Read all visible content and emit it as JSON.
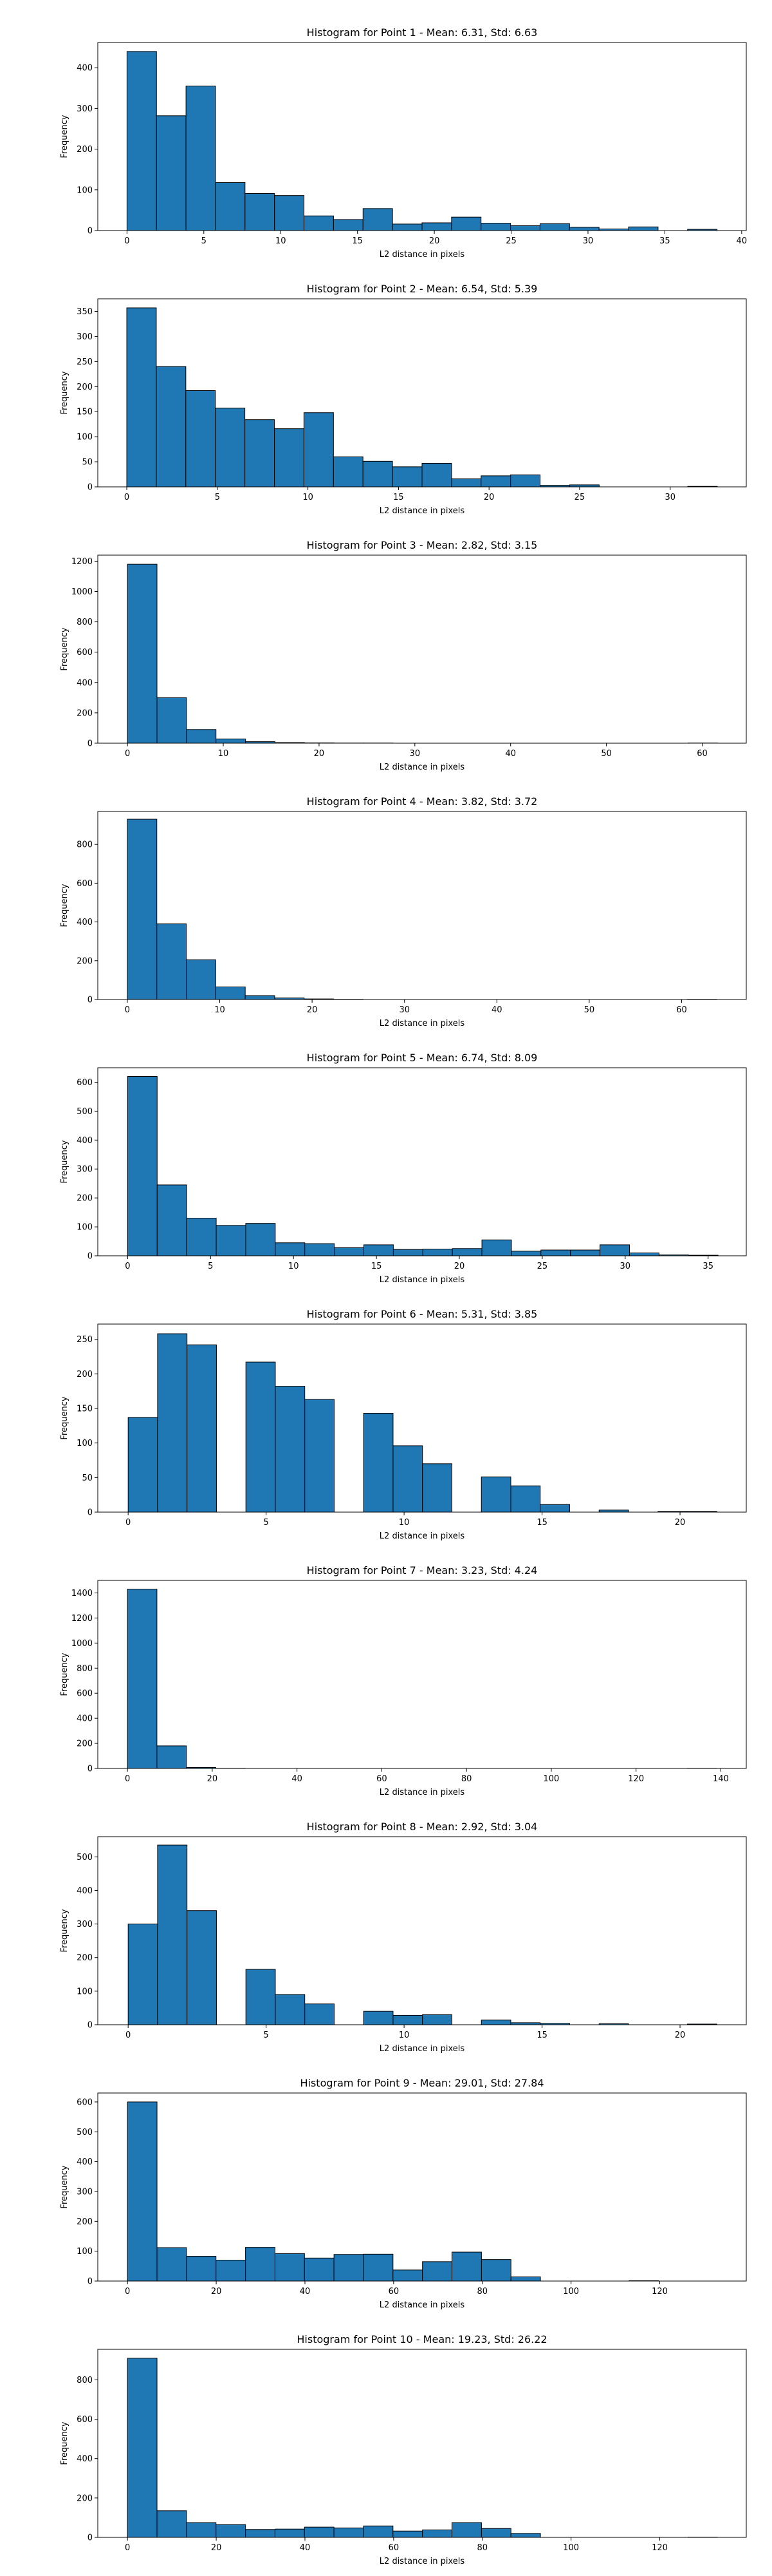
{
  "chart_data": [
    {
      "type": "bar",
      "title": "Histogram for Point 1 - Mean: 6.31, Std: 6.63",
      "xlabel": "L2 distance in pixels",
      "ylabel": "Frequency",
      "xlim": [
        -1.9,
        40.3
      ],
      "ylim": [
        0,
        462
      ],
      "xticks": [
        0,
        5,
        10,
        15,
        20,
        25,
        30,
        35,
        40
      ],
      "yticks": [
        0,
        100,
        200,
        300,
        400
      ],
      "bin_edges": [
        0,
        1.92,
        3.84,
        5.76,
        7.68,
        9.6,
        11.52,
        13.44,
        15.36,
        17.28,
        19.2,
        21.12,
        23.04,
        24.96,
        26.88,
        28.8,
        30.72,
        32.64,
        34.56,
        36.48,
        38.4
      ],
      "values": [
        440,
        282,
        355,
        118,
        91,
        86,
        36,
        27,
        54,
        16,
        19,
        33,
        18,
        12,
        17,
        8,
        4,
        9,
        0,
        3
      ],
      "grid": false,
      "color": "#1f77b4"
    },
    {
      "type": "bar",
      "title": "Histogram for Point 2 - Mean: 6.54, Std: 5.39",
      "xlabel": "L2 distance in pixels",
      "ylabel": "Frequency",
      "xlim": [
        -1.6,
        34.2
      ],
      "ylim": [
        0,
        375
      ],
      "xticks": [
        0,
        5,
        10,
        15,
        20,
        25,
        30
      ],
      "yticks": [
        0,
        50,
        100,
        150,
        200,
        250,
        300,
        350
      ],
      "bin_edges": [
        0,
        1.63,
        3.26,
        4.89,
        6.52,
        8.15,
        9.78,
        11.41,
        13.04,
        14.67,
        16.3,
        17.93,
        19.56,
        21.19,
        22.82,
        24.45,
        26.08,
        27.71,
        29.34,
        30.97,
        32.6
      ],
      "values": [
        357,
        240,
        192,
        157,
        134,
        116,
        148,
        60,
        51,
        40,
        47,
        16,
        22,
        24,
        3,
        4,
        0,
        0,
        0,
        1
      ],
      "grid": false,
      "color": "#1f77b4"
    },
    {
      "type": "bar",
      "title": "Histogram for Point 3 - Mean: 2.82, Std: 3.15",
      "xlabel": "L2 distance in pixels",
      "ylabel": "Frequency",
      "xlim": [
        -3.1,
        64.6
      ],
      "ylim": [
        0,
        1240
      ],
      "xticks": [
        0,
        10,
        20,
        30,
        40,
        50,
        60
      ],
      "yticks": [
        0,
        200,
        400,
        600,
        800,
        1000,
        1200
      ],
      "bin_edges": [
        0,
        3.08,
        6.16,
        9.24,
        12.32,
        15.4,
        18.48,
        21.56,
        24.64,
        27.72,
        30.8,
        33.88,
        36.96,
        40.04,
        43.12,
        46.2,
        49.28,
        52.36,
        55.44,
        58.52,
        61.6
      ],
      "values": [
        1180,
        300,
        90,
        28,
        10,
        4,
        2,
        1,
        1,
        0,
        0,
        0,
        0,
        0,
        0,
        0,
        0,
        0,
        0,
        1
      ],
      "grid": false,
      "color": "#1f77b4"
    },
    {
      "type": "bar",
      "title": "Histogram for Point 4 - Mean: 3.82, Std: 3.72",
      "xlabel": "L2 distance in pixels",
      "ylabel": "Frequency",
      "xlim": [
        -3.2,
        67.0
      ],
      "ylim": [
        0,
        970
      ],
      "xticks": [
        0,
        10,
        20,
        30,
        40,
        50,
        60
      ],
      "yticks": [
        0,
        200,
        400,
        600,
        800
      ],
      "bin_edges": [
        0,
        3.19,
        6.38,
        9.57,
        12.76,
        15.95,
        19.14,
        22.33,
        25.52,
        28.71,
        31.9,
        35.09,
        38.28,
        41.47,
        44.66,
        47.85,
        51.04,
        54.23,
        57.42,
        60.61,
        63.8
      ],
      "values": [
        930,
        390,
        205,
        65,
        20,
        8,
        3,
        1,
        0,
        0,
        0,
        0,
        0,
        0,
        0,
        0,
        0,
        0,
        0,
        1
      ],
      "grid": false,
      "color": "#1f77b4"
    },
    {
      "type": "bar",
      "title": "Histogram for Point 5 - Mean: 6.74, Std: 8.09",
      "xlabel": "L2 distance in pixels",
      "ylabel": "Frequency",
      "xlim": [
        -1.8,
        37.3
      ],
      "ylim": [
        0,
        650
      ],
      "xticks": [
        0,
        5,
        10,
        15,
        20,
        25,
        30,
        35
      ],
      "yticks": [
        0,
        100,
        200,
        300,
        400,
        500,
        600
      ],
      "bin_edges": [
        0,
        1.78,
        3.56,
        5.34,
        7.12,
        8.9,
        10.68,
        12.46,
        14.24,
        16.02,
        17.8,
        19.58,
        21.36,
        23.14,
        24.92,
        26.7,
        28.48,
        30.26,
        32.04,
        33.82,
        35.6
      ],
      "values": [
        620,
        245,
        130,
        105,
        112,
        45,
        42,
        28,
        38,
        22,
        23,
        25,
        55,
        16,
        20,
        20,
        38,
        10,
        3,
        2
      ],
      "grid": false,
      "color": "#1f77b4"
    },
    {
      "type": "bar",
      "title": "Histogram for Point 6 - Mean: 5.31, Std: 3.85",
      "xlabel": "L2 distance in pixels",
      "ylabel": "Frequency",
      "xlim": [
        -1.1,
        22.4
      ],
      "ylim": [
        0,
        272
      ],
      "xticks": [
        0,
        5,
        10,
        15,
        20
      ],
      "yticks": [
        0,
        50,
        100,
        150,
        200,
        250
      ],
      "bin_edges": [
        0,
        1.0666,
        2.1333,
        3.2,
        4.2666,
        5.3333,
        6.4,
        7.4666,
        8.5333,
        9.6,
        10.6666,
        11.7333,
        12.8,
        13.8666,
        14.9333,
        16.0,
        17.0666,
        18.1333,
        19.2,
        20.2666,
        21.3333
      ],
      "values": [
        137,
        258,
        242,
        0,
        217,
        182,
        163,
        0,
        143,
        96,
        70,
        0,
        51,
        38,
        11,
        0,
        3,
        0,
        1,
        1
      ],
      "grid": false,
      "color": "#1f77b4"
    },
    {
      "type": "bar",
      "title": "Histogram for Point 7 - Mean: 3.23, Std: 4.24",
      "xlabel": "L2 distance in pixels",
      "ylabel": "Frequency",
      "xlim": [
        -7.0,
        146.0
      ],
      "ylim": [
        0,
        1500
      ],
      "xticks": [
        0,
        20,
        40,
        60,
        80,
        100,
        120,
        140
      ],
      "yticks": [
        0,
        200,
        400,
        600,
        800,
        1000,
        1200,
        1400
      ],
      "bin_edges": [
        0,
        6.95,
        13.9,
        20.85,
        27.8,
        34.75,
        41.7,
        48.65,
        55.6,
        62.55,
        69.5,
        76.45,
        83.4,
        90.35,
        97.3,
        104.25,
        111.2,
        118.15,
        125.1,
        132.05,
        139.0
      ],
      "values": [
        1430,
        180,
        8,
        1,
        0,
        0,
        0,
        0,
        0,
        0,
        0,
        0,
        0,
        0,
        0,
        0,
        0,
        0,
        0,
        1
      ],
      "grid": false,
      "color": "#1f77b4"
    },
    {
      "type": "bar",
      "title": "Histogram for Point 8 - Mean: 2.92, Std: 3.04",
      "xlabel": "L2 distance in pixels",
      "ylabel": "Frequency",
      "xlim": [
        -1.1,
        22.4
      ],
      "ylim": [
        0,
        560
      ],
      "xticks": [
        0,
        5,
        10,
        15,
        20
      ],
      "yticks": [
        0,
        100,
        200,
        300,
        400,
        500
      ],
      "bin_edges": [
        0,
        1.0666,
        2.1333,
        3.2,
        4.2666,
        5.3333,
        6.4,
        7.4666,
        8.5333,
        9.6,
        10.6666,
        11.7333,
        12.8,
        13.8666,
        14.9333,
        16.0,
        17.0666,
        18.1333,
        19.2,
        20.2666,
        21.3333
      ],
      "values": [
        300,
        535,
        340,
        0,
        165,
        90,
        62,
        0,
        40,
        28,
        30,
        0,
        14,
        6,
        4,
        0,
        3,
        0,
        0,
        2
      ],
      "grid": false,
      "color": "#1f77b4"
    },
    {
      "type": "bar",
      "title": "Histogram for Point 9 - Mean: 29.01, Std: 27.84",
      "xlabel": "L2 distance in pixels",
      "ylabel": "Frequency",
      "xlim": [
        -6.7,
        139.5
      ],
      "ylim": [
        0,
        630
      ],
      "xticks": [
        0,
        20,
        40,
        60,
        80,
        100,
        120
      ],
      "yticks": [
        0,
        100,
        200,
        300,
        400,
        500,
        600
      ],
      "bin_edges": [
        0,
        6.65,
        13.3,
        19.95,
        26.6,
        33.25,
        39.9,
        46.55,
        53.2,
        59.85,
        66.5,
        73.15,
        79.8,
        86.45,
        93.1,
        99.75,
        106.4,
        113.05,
        119.7,
        126.35,
        133.0
      ],
      "values": [
        600,
        112,
        83,
        70,
        113,
        92,
        77,
        89,
        90,
        37,
        65,
        97,
        72,
        14,
        0,
        0,
        0,
        1,
        0,
        0
      ],
      "grid": false,
      "color": "#1f77b4"
    },
    {
      "type": "bar",
      "title": "Histogram for Point 10 - Mean: 19.23, Std: 26.22",
      "xlabel": "L2 distance in pixels",
      "ylabel": "Frequency",
      "xlim": [
        -6.7,
        139.5
      ],
      "ylim": [
        0,
        955
      ],
      "xticks": [
        0,
        20,
        40,
        60,
        80,
        100,
        120
      ],
      "yticks": [
        0,
        200,
        400,
        600,
        800
      ],
      "bin_edges": [
        0,
        6.65,
        13.3,
        19.95,
        26.6,
        33.25,
        39.9,
        46.55,
        53.2,
        59.85,
        66.5,
        73.15,
        79.8,
        86.45,
        93.1,
        99.75,
        106.4,
        113.05,
        119.7,
        126.35,
        133.0
      ],
      "values": [
        910,
        135,
        75,
        65,
        40,
        42,
        52,
        48,
        58,
        32,
        38,
        75,
        45,
        20,
        0,
        0,
        0,
        0,
        0,
        1
      ],
      "grid": false,
      "color": "#1f77b4"
    }
  ]
}
